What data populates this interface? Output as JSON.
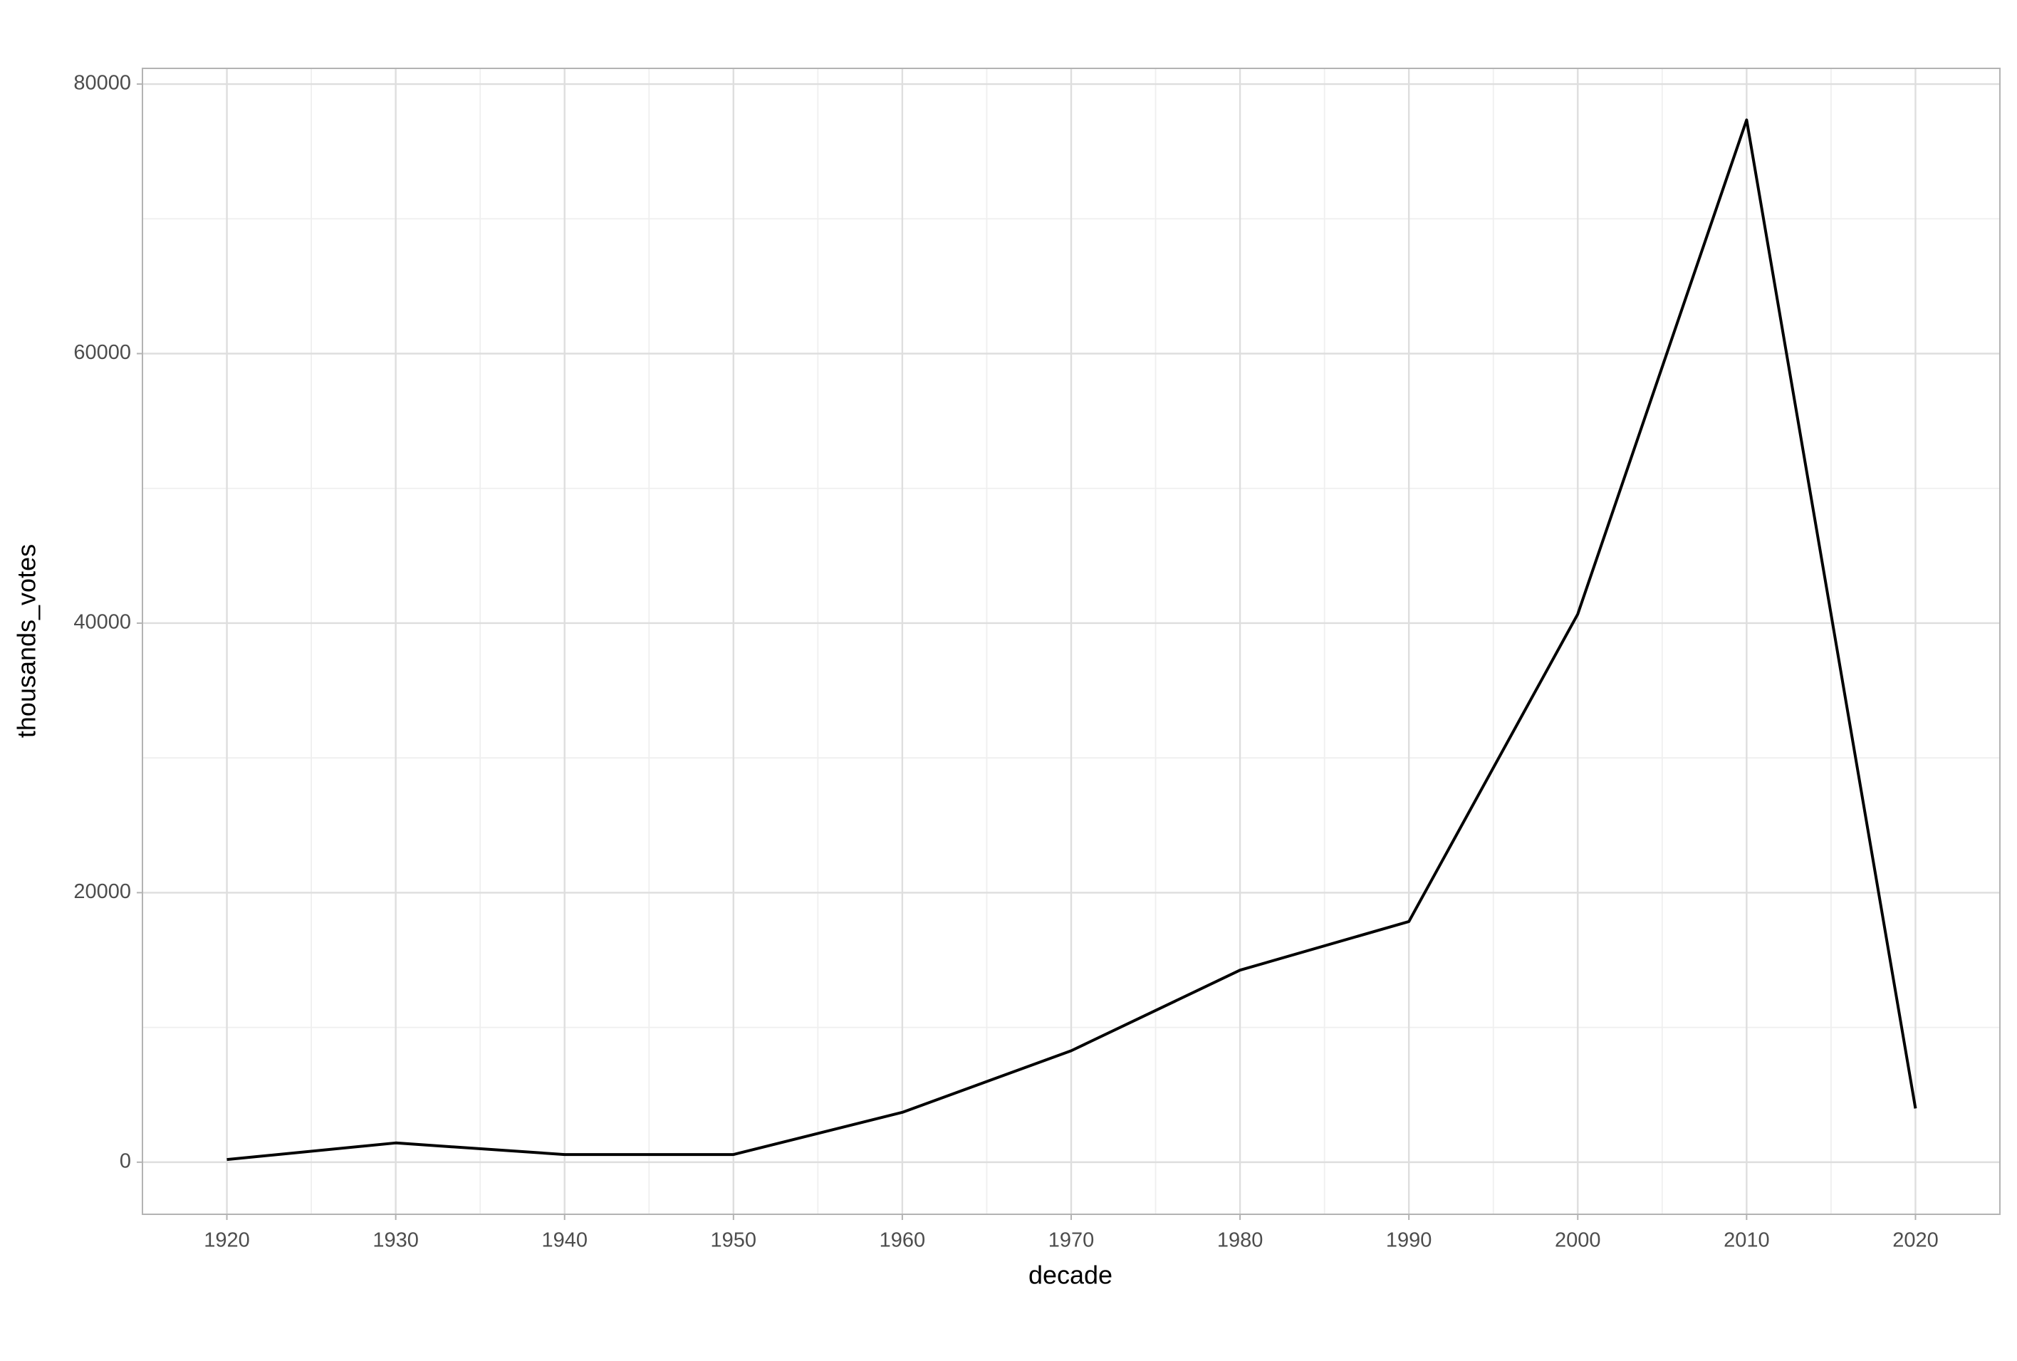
{
  "chart_data": {
    "type": "line",
    "x_label": "decade",
    "y_label": "thousands_votes",
    "x": [
      1920,
      1930,
      1940,
      1950,
      1960,
      1970,
      1980,
      1990,
      2000,
      2010,
      2020
    ],
    "values": [
      200,
      1430,
      570,
      570,
      3700,
      8270,
      14250,
      17860,
      40670,
      77340,
      3990
    ],
    "color": "#000000",
    "xlim": [
      1915,
      2025
    ],
    "xticks": [
      1920,
      1930,
      1940,
      1950,
      1960,
      1970,
      1980,
      1990,
      2000,
      2010,
      2020
    ],
    "ylim": [
      -3865,
      81165
    ],
    "yticks": [
      0,
      20000,
      40000,
      60000,
      80000
    ],
    "grid": true
  }
}
